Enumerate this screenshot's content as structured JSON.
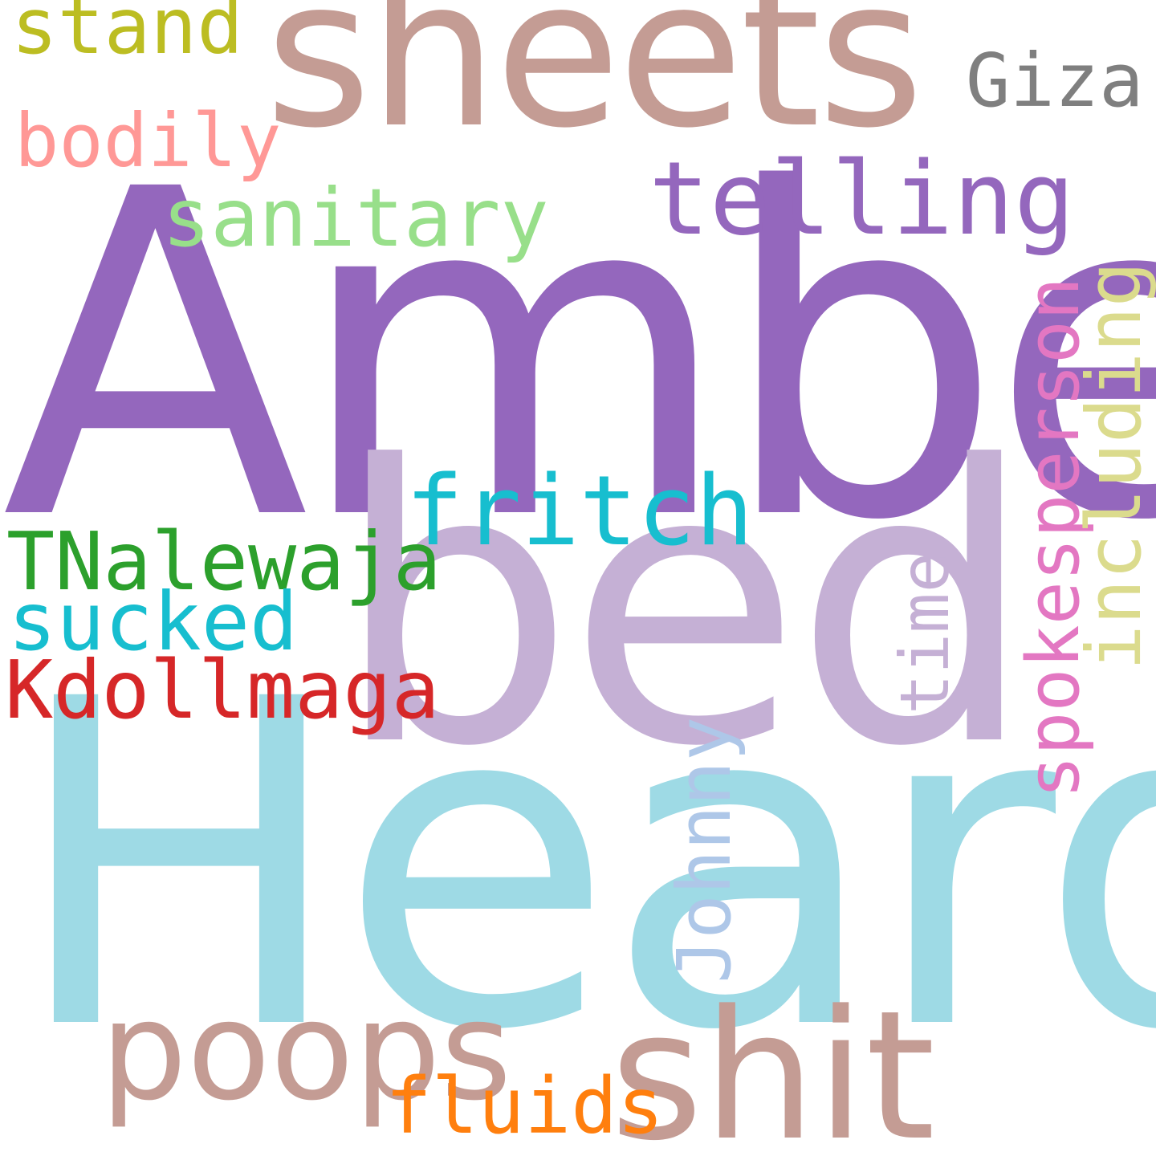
{
  "words": [
    {
      "id": "amber",
      "text": "Amber",
      "color": "#9467bd",
      "orientation": "horizontal"
    },
    {
      "id": "heard",
      "text": "Heard",
      "color": "#9edae5",
      "orientation": "horizontal"
    },
    {
      "id": "bed",
      "text": "bed",
      "color": "#c5b0d5",
      "orientation": "horizontal"
    },
    {
      "id": "sheets",
      "text": "sheets",
      "color": "#c49c94",
      "orientation": "horizontal"
    },
    {
      "id": "shit",
      "text": "shit",
      "color": "#c49c94",
      "orientation": "horizontal"
    },
    {
      "id": "poops",
      "text": "poops",
      "color": "#c49c94",
      "orientation": "horizontal"
    },
    {
      "id": "telling",
      "text": "telling",
      "color": "#9467bd",
      "orientation": "horizontal"
    },
    {
      "id": "fritch",
      "text": "fritch",
      "color": "#17becf",
      "orientation": "horizontal"
    },
    {
      "id": "sanitary",
      "text": "sanitary",
      "color": "#98df8a",
      "orientation": "horizontal"
    },
    {
      "id": "giza",
      "text": "Giza",
      "color": "#7f7f7f",
      "orientation": "horizontal"
    },
    {
      "id": "stand",
      "text": "stand",
      "color": "#bcbd22",
      "orientation": "horizontal"
    },
    {
      "id": "bodily",
      "text": "bodily",
      "color": "#ff9896",
      "orientation": "horizontal"
    },
    {
      "id": "tnalewaja",
      "text": "TNalewaja",
      "color": "#2ca02c",
      "orientation": "horizontal"
    },
    {
      "id": "sucked",
      "text": "sucked",
      "color": "#17becf",
      "orientation": "horizontal"
    },
    {
      "id": "kdollmaga",
      "text": "Kdollmaga",
      "color": "#d62728",
      "orientation": "horizontal"
    },
    {
      "id": "fluids",
      "text": "fluids",
      "color": "#ff7f0e",
      "orientation": "horizontal"
    },
    {
      "id": "johnny",
      "text": "Johnny",
      "color": "#aec7e8",
      "orientation": "vertical"
    },
    {
      "id": "time",
      "text": "time",
      "color": "#c5b0d5",
      "orientation": "vertical"
    },
    {
      "id": "spokesperson",
      "text": "spokesperson",
      "color": "#e377c2",
      "orientation": "vertical"
    },
    {
      "id": "including",
      "text": "including",
      "color": "#dbdb8d",
      "orientation": "vertical"
    }
  ]
}
